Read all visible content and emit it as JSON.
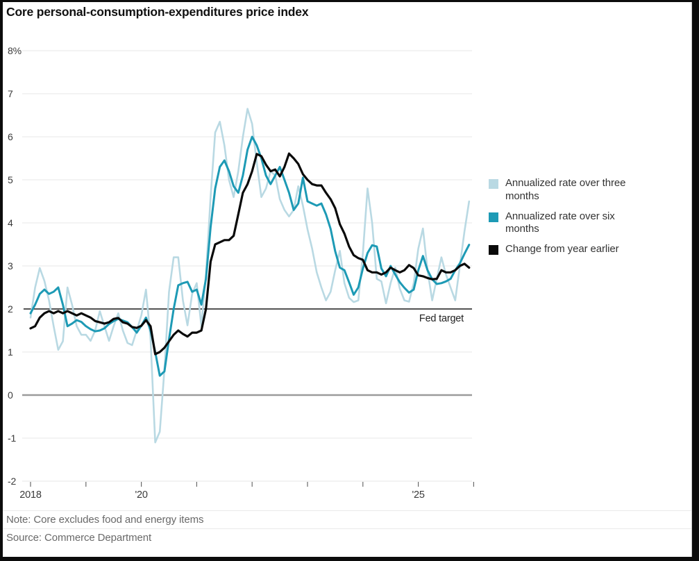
{
  "title": "Core personal-consumption-expenditures price index",
  "note": "Note: Core excludes food and energy items",
  "source": "Source: Commerce Department",
  "legend": [
    {
      "label": "Annualized rate over three months",
      "color": "#b9d9e3"
    },
    {
      "label": "Annualized rate over six months",
      "color": "#1d9ab5"
    },
    {
      "label": "Change from year earlier",
      "color": "#0a0a0a"
    }
  ],
  "chart_data": {
    "type": "line",
    "title": "Core personal-consumption-expenditures price index",
    "x_unit": "month",
    "x_start": "2018-01",
    "x_end": "2025-12",
    "ylim": [
      -2,
      8
    ],
    "grid": "horizontal",
    "legend_position": "right",
    "y_tick_labels": [
      "8%",
      "7",
      "6",
      "5",
      "4",
      "3",
      "2",
      "1",
      "0",
      "-1",
      "-2"
    ],
    "x_tick_labels": [
      "2018",
      "",
      "'20",
      "",
      "",
      "",
      "",
      "'25",
      ""
    ],
    "fed_target": {
      "value": 2,
      "label": "Fed target"
    },
    "series": [
      {
        "name": "Annualized rate over three months",
        "color": "#b9d9e3",
        "line_width": 2.6,
        "values": [
          1.8,
          2.5,
          2.95,
          2.65,
          2.2,
          1.6,
          1.05,
          1.25,
          2.5,
          2.1,
          1.6,
          1.4,
          1.4,
          1.26,
          1.5,
          1.95,
          1.6,
          1.26,
          1.6,
          1.9,
          1.5,
          1.21,
          1.16,
          1.5,
          1.85,
          2.45,
          1.3,
          -1.1,
          -0.85,
          0.6,
          2.4,
          3.2,
          3.2,
          2.2,
          1.62,
          2.35,
          2.6,
          1.6,
          2.8,
          4.6,
          6.1,
          6.35,
          5.8,
          5.0,
          4.6,
          5.2,
          6.0,
          6.65,
          6.3,
          5.4,
          4.6,
          4.8,
          5.2,
          5.1,
          4.55,
          4.3,
          4.15,
          4.3,
          4.85,
          4.4,
          3.85,
          3.4,
          2.85,
          2.5,
          2.2,
          2.4,
          2.9,
          3.35,
          2.6,
          2.26,
          2.16,
          2.2,
          3.3,
          4.8,
          4.0,
          2.7,
          2.64,
          2.13,
          2.6,
          2.96,
          2.47,
          2.2,
          2.17,
          2.6,
          3.4,
          3.87,
          2.9,
          2.2,
          2.7,
          3.2,
          2.8,
          2.5,
          2.2,
          3.0,
          3.8,
          4.5
        ]
      },
      {
        "name": "Annualized rate over six months",
        "color": "#1d9ab5",
        "line_width": 3,
        "values": [
          1.9,
          2.1,
          2.35,
          2.45,
          2.35,
          2.4,
          2.5,
          2.1,
          1.6,
          1.66,
          1.74,
          1.7,
          1.6,
          1.53,
          1.48,
          1.5,
          1.55,
          1.65,
          1.72,
          1.77,
          1.73,
          1.69,
          1.58,
          1.45,
          1.61,
          1.8,
          1.5,
          1.0,
          0.45,
          0.55,
          1.3,
          2.0,
          2.55,
          2.6,
          2.63,
          2.4,
          2.45,
          2.1,
          2.7,
          3.9,
          4.8,
          5.3,
          5.45,
          5.2,
          4.85,
          4.7,
          5.1,
          5.7,
          6.0,
          5.8,
          5.5,
          5.1,
          4.9,
          5.1,
          5.3,
          5.0,
          4.7,
          4.3,
          4.45,
          5.05,
          4.5,
          4.45,
          4.4,
          4.45,
          4.2,
          3.86,
          3.34,
          2.96,
          2.9,
          2.62,
          2.33,
          2.5,
          2.94,
          3.3,
          3.48,
          3.45,
          2.94,
          2.76,
          3.0,
          2.8,
          2.62,
          2.49,
          2.38,
          2.45,
          2.9,
          3.23,
          2.9,
          2.69,
          2.58,
          2.6,
          2.64,
          2.7,
          2.9,
          3.06,
          3.28,
          3.49
        ]
      },
      {
        "name": "Change from year earlier",
        "color": "#0a0a0a",
        "line_width": 3.2,
        "values": [
          1.55,
          1.6,
          1.8,
          1.9,
          1.95,
          1.9,
          1.95,
          1.9,
          1.95,
          1.9,
          1.85,
          1.9,
          1.85,
          1.8,
          1.72,
          1.69,
          1.66,
          1.69,
          1.77,
          1.79,
          1.69,
          1.66,
          1.58,
          1.56,
          1.61,
          1.74,
          1.6,
          0.95,
          1.0,
          1.1,
          1.25,
          1.4,
          1.5,
          1.42,
          1.36,
          1.45,
          1.45,
          1.5,
          2.0,
          3.1,
          3.5,
          3.55,
          3.6,
          3.6,
          3.7,
          4.2,
          4.7,
          4.9,
          5.2,
          5.6,
          5.55,
          5.35,
          5.2,
          5.24,
          5.08,
          5.3,
          5.61,
          5.5,
          5.37,
          5.13,
          5.0,
          4.9,
          4.87,
          4.87,
          4.7,
          4.55,
          4.34,
          3.97,
          3.75,
          3.45,
          3.25,
          3.18,
          3.14,
          2.9,
          2.85,
          2.85,
          2.8,
          2.85,
          2.96,
          2.9,
          2.85,
          2.9,
          3.02,
          2.95,
          2.78,
          2.76,
          2.72,
          2.69,
          2.7,
          2.9,
          2.85,
          2.85,
          2.9,
          3.0,
          3.05,
          2.96
        ]
      }
    ]
  }
}
